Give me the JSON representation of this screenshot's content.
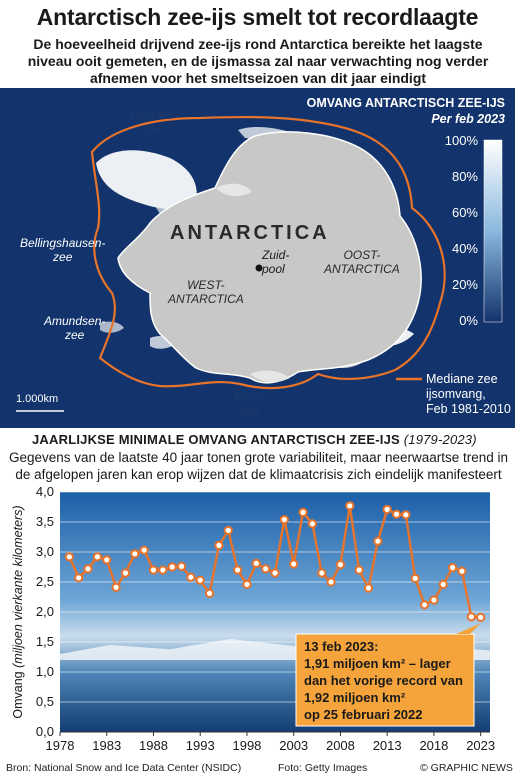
{
  "headline": "Antarctisch zee-ijs smelt tot recordlaagte",
  "intro": "De hoeveelheid drijvend zee-ijs rond Antarctica bereikte het laagste niveau ooit gemeten, en de ijsmassa zal naar verwachting nog verder afnemen voor het smeltseizoen van dit jaar eindigt",
  "map": {
    "legend_title": "OMVANG ANTARCTISCH ZEE-IJS",
    "legend_subtitle": "Per feb 2023",
    "legend_ticks": [
      "100%",
      "80%",
      "60%",
      "40%",
      "20%",
      "0%"
    ],
    "continent_label": "ANTARCTICA",
    "weddell": "Weddell-\nzee",
    "bellingshausen": "Bellingshausen-\nzee",
    "amundsen": "Amundsen-\nzee",
    "west": "WEST-\nANTARCTICA",
    "east": "OOST-\nANTARCTICA",
    "south_pole": "Zuid-\npool",
    "ross": "Ross-\nzee",
    "scale": "1.000km",
    "median_label": "Mediane zee\nijsomvang,\nFeb 1981-2010",
    "colors": {
      "ocean": "#12336b",
      "continent": "#c8c8c6",
      "median_line": "#e8732a",
      "ice": "#ffffff"
    }
  },
  "chart_section": {
    "title": "JAARLIJKSE MINIMALE OMVANG ANTARCTISCH ZEE-IJS",
    "years": "(1979-2023)",
    "text": "Gegevens van de laatste 40 jaar tonen grote variabiliteit, maar neerwaartse trend in de afgelopen jaren kan erop wijzen dat de klimaatcrisis zich eindelijk manifesteert"
  },
  "chart_data": {
    "type": "line",
    "ylabel": "Omvang (miljoen vierkante kilometers)",
    "ylim": [
      0,
      4
    ],
    "xlim": [
      1978,
      2024
    ],
    "yticks": [
      "0,0",
      "0,5",
      "1,0",
      "1,5",
      "2,0",
      "2,5",
      "3,0",
      "3,5",
      "4,0"
    ],
    "xticks": [
      "1978",
      "1983",
      "1988",
      "1993",
      "1998",
      "2003",
      "2008",
      "2013",
      "2018",
      "2023"
    ],
    "grid": true,
    "series": [
      {
        "color": "#e8732a",
        "x": [
          1979,
          1980,
          1981,
          1982,
          1983,
          1984,
          1985,
          1986,
          1987,
          1988,
          1989,
          1990,
          1991,
          1992,
          1993,
          1994,
          1995,
          1996,
          1997,
          1998,
          1999,
          2000,
          2001,
          2002,
          2003,
          2004,
          2005,
          2006,
          2007,
          2008,
          2009,
          2010,
          2011,
          2012,
          2013,
          2014,
          2015,
          2016,
          2017,
          2018,
          2019,
          2020,
          2021,
          2022,
          2023
        ],
        "values": [
          2.92,
          2.57,
          2.72,
          2.92,
          2.87,
          2.41,
          2.65,
          2.97,
          3.03,
          2.7,
          2.7,
          2.75,
          2.76,
          2.58,
          2.53,
          2.31,
          3.11,
          3.36,
          2.7,
          2.46,
          2.81,
          2.72,
          2.65,
          3.54,
          2.8,
          3.66,
          3.47,
          2.65,
          2.5,
          2.79,
          3.77,
          2.7,
          2.4,
          3.18,
          3.71,
          3.63,
          3.62,
          2.56,
          2.12,
          2.2,
          2.46,
          2.74,
          2.68,
          1.92,
          1.91
        ]
      }
    ],
    "annotation": {
      "line1": "13 feb 2023:",
      "line2": "1,91 miljoen km² – lager",
      "line3": "dan het vorige record van",
      "line4": "1,92 miljoen km²",
      "line5": "op 25 februari 2022"
    }
  },
  "footer": {
    "source": "Bron: National Snow and Ice Data Center (NSIDC)",
    "photo": "Foto: Getty Images",
    "credit": "© GRAPHIC NEWS"
  }
}
